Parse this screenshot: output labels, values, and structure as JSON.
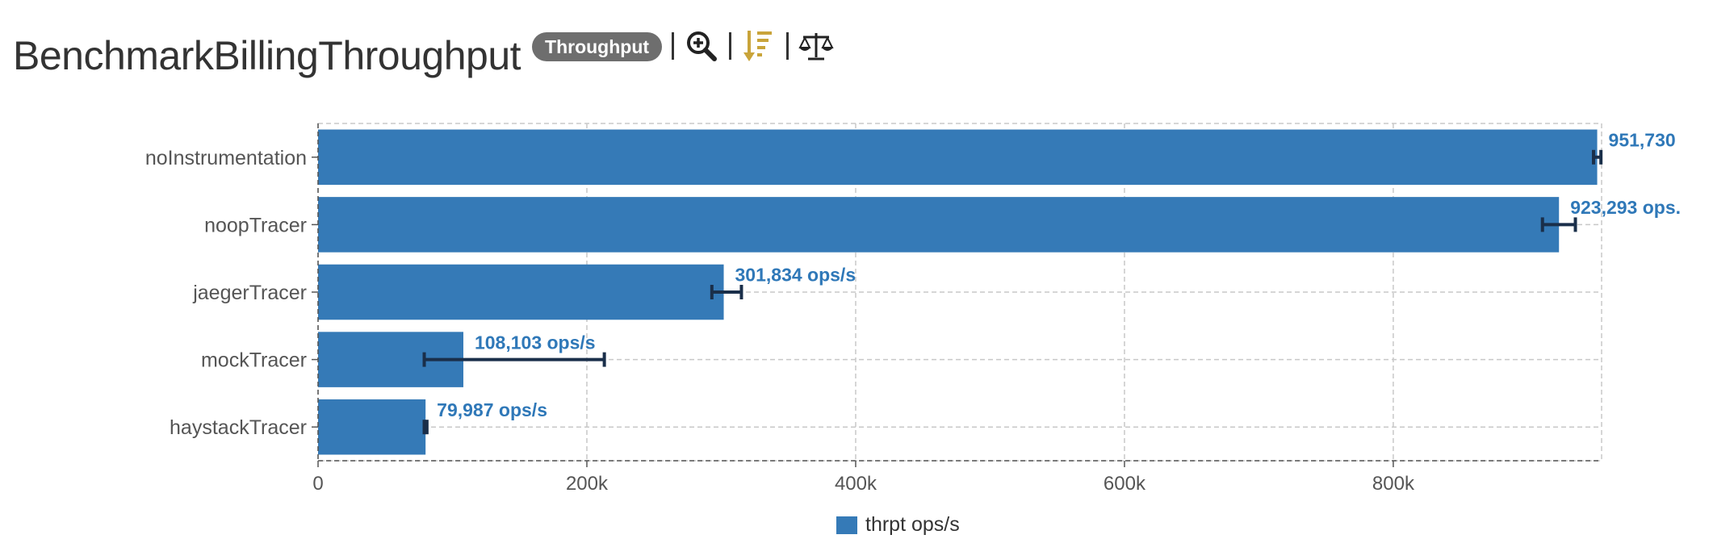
{
  "header": {
    "title": "BenchmarkBillingThroughput",
    "badge": "Throughput"
  },
  "icons": {
    "zoom": "zoom-in-icon",
    "sort": "sort-descending-icon",
    "compare": "balance-scale-icon"
  },
  "colors": {
    "bar": "#357ab7",
    "label": "#2f78b8",
    "error_bar": "#1a2f4a",
    "sort_icon": "#c9a43a"
  },
  "chart_data": {
    "type": "bar",
    "orientation": "horizontal",
    "categories": [
      "noInstrumentation",
      "noopTracer",
      "jaegerTracer",
      "mockTracer",
      "haystackTracer"
    ],
    "series": [
      {
        "name": "thrpt ops/s",
        "values": [
          951730,
          923293,
          301834,
          108103,
          79987
        ],
        "error_low": [
          949000,
          911000,
          293000,
          79000,
          79000
        ],
        "error_high": [
          954500,
          935500,
          315000,
          213000,
          81000
        ],
        "data_labels": [
          "951,730",
          "923,293 ops.",
          "301,834 ops/s",
          "108,103 ops/s",
          "79,987 ops/s"
        ]
      }
    ],
    "xlim": [
      0,
      955000
    ],
    "xticks": [
      0,
      200000,
      400000,
      600000,
      800000
    ],
    "xtick_labels": [
      "0",
      "200k",
      "400k",
      "600k",
      "800k"
    ],
    "grid": true,
    "legend": "bottom-center"
  }
}
